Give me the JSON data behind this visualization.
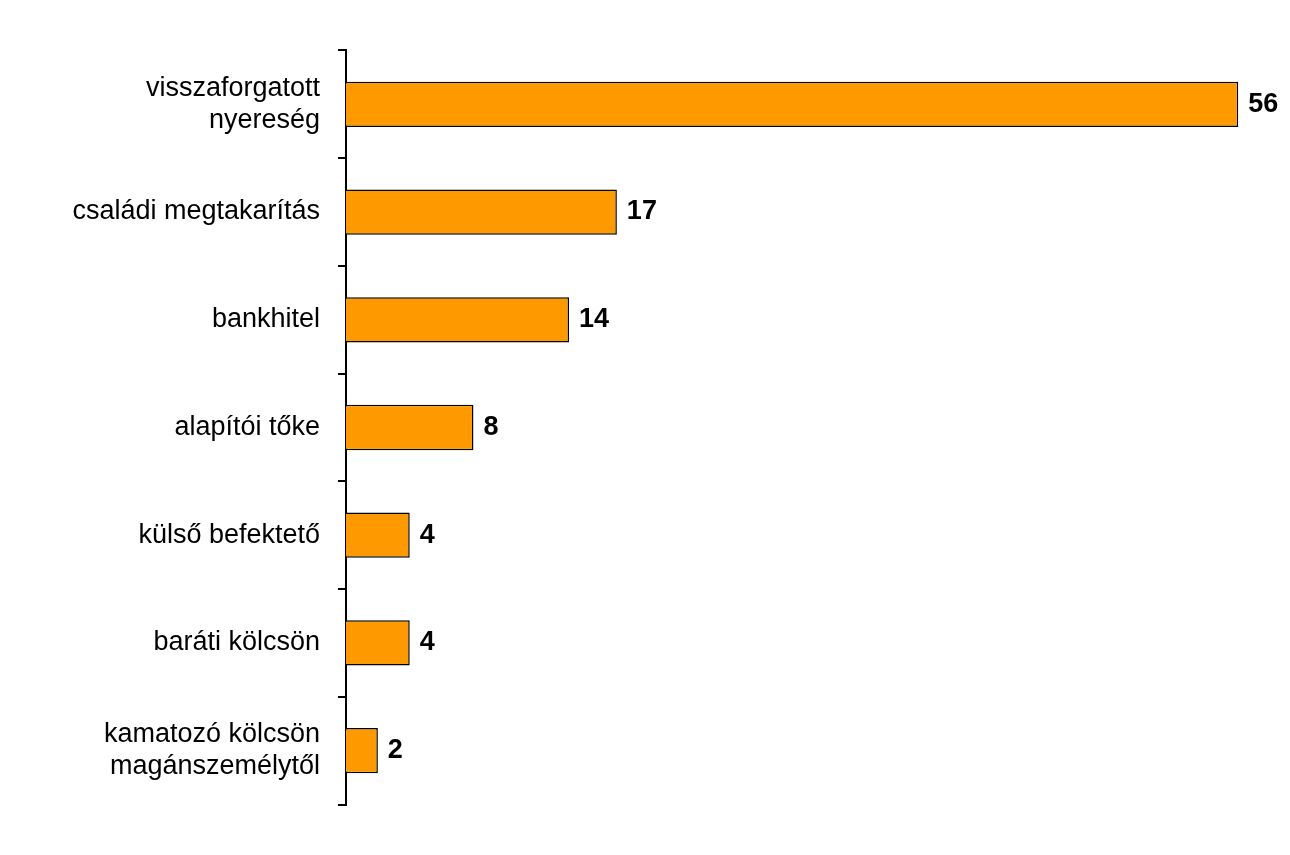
{
  "chart_data": {
    "type": "bar",
    "orientation": "horizontal",
    "relative": false,
    "data_labels": true,
    "categories": [
      "visszaforgatott nyereség",
      "családi megtakarítás",
      "bankhitel",
      "alapítói tőke",
      "külső befektető",
      "baráti kölcsön",
      "kamatozó kölcsön magánszemélytől"
    ],
    "values": [
      56,
      17,
      14,
      8,
      4,
      4,
      2
    ],
    "color": "#ff9900",
    "grid": false,
    "legend": false
  }
}
